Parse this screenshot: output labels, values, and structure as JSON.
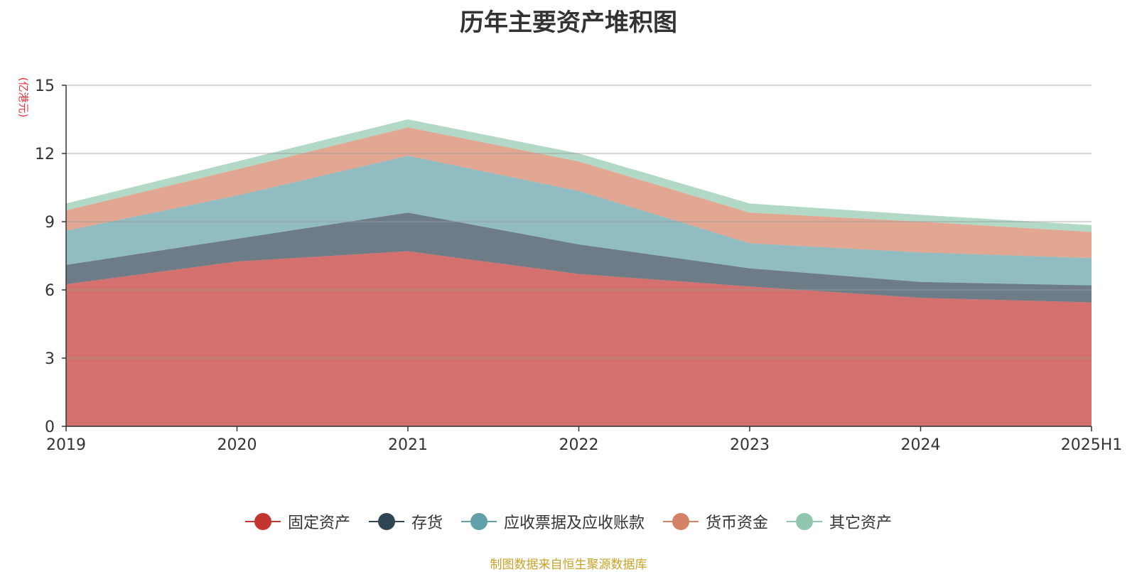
{
  "chart_data": {
    "type": "area",
    "stacked": true,
    "title": "历年主要资产堆积图",
    "ylabel": "(亿港元)",
    "xlabel": "",
    "categories": [
      "2019",
      "2020",
      "2021",
      "2022",
      "2023",
      "2024",
      "2025H1"
    ],
    "ylim": [
      0,
      15
    ],
    "yticks": [
      0,
      3,
      6,
      9,
      12,
      15
    ],
    "grid": true,
    "legend_position": "bottom",
    "series": [
      {
        "name": "固定资产",
        "color": "#c23531",
        "values": [
          6.25,
          7.25,
          7.7,
          6.7,
          6.15,
          5.65,
          5.45
        ]
      },
      {
        "name": "存货",
        "color": "#2f4554",
        "values": [
          0.85,
          1.0,
          1.7,
          1.3,
          0.8,
          0.7,
          0.75
        ]
      },
      {
        "name": "应收票据及应收账款",
        "color": "#61a0a8",
        "values": [
          1.5,
          1.9,
          2.5,
          2.35,
          1.1,
          1.3,
          1.2
        ]
      },
      {
        "name": "货币资金",
        "color": "#d48265",
        "values": [
          0.9,
          1.15,
          1.25,
          1.3,
          1.35,
          1.35,
          1.15
        ]
      },
      {
        "name": "其它资产",
        "color": "#91c7ae",
        "values": [
          0.3,
          0.35,
          0.35,
          0.35,
          0.4,
          0.3,
          0.3
        ]
      }
    ]
  },
  "unit_color": "#e5323e",
  "source_note": "制图数据来自恒生聚源数据库",
  "source_color": "#c9a227"
}
